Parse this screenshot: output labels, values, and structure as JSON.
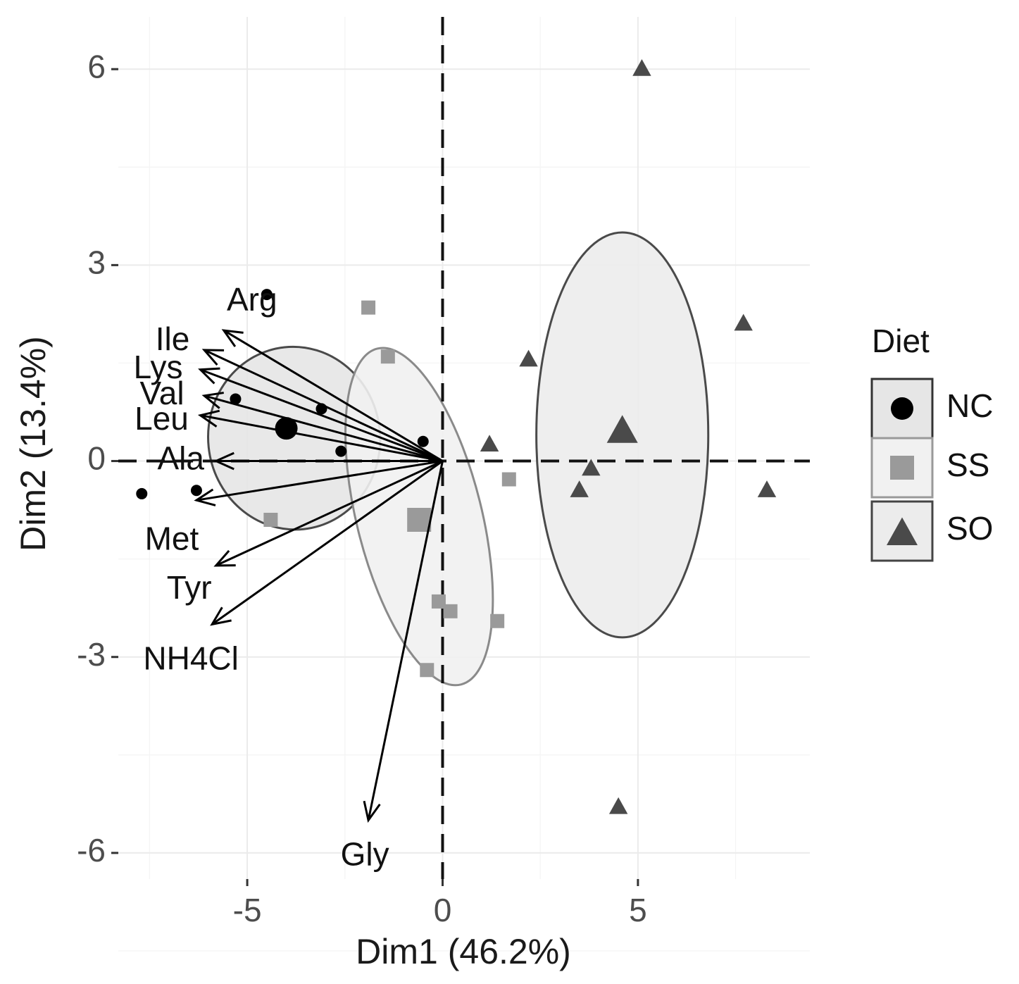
{
  "chart_data": {
    "type": "scatter",
    "xlabel": "Dim1 (46.2%)",
    "ylabel": "Dim2 (13.4%)",
    "xlim": [
      -8.3,
      9.4
    ],
    "ylim": [
      -6.4,
      6.8
    ],
    "x_ticks": [
      -5,
      0,
      5
    ],
    "x_tick_labels": [
      "-5",
      "0",
      "5"
    ],
    "y_ticks": [
      -6,
      -3,
      0,
      3,
      6
    ],
    "y_tick_labels": [
      "-6",
      "-3",
      "0",
      "3",
      "6"
    ],
    "grid": true,
    "legend": {
      "title": "Diet",
      "position": "right",
      "entries": [
        {
          "label": "NC",
          "shape": "circle",
          "color": "#000000"
        },
        {
          "label": "SS",
          "shape": "square",
          "color": "#9a9a9a"
        },
        {
          "label": "SO",
          "shape": "triangle",
          "color": "#4a4a4a"
        }
      ]
    },
    "series": [
      {
        "name": "NC",
        "shape": "circle",
        "color": "#000000",
        "points": [
          [
            -4.5,
            2.55
          ],
          [
            -5.3,
            0.95
          ],
          [
            -3.1,
            0.8
          ],
          [
            -2.6,
            0.15
          ],
          [
            -0.5,
            0.3
          ],
          [
            -6.3,
            -0.45
          ],
          [
            -7.7,
            -0.5
          ]
        ],
        "centroid": [
          -4.0,
          0.5
        ],
        "ellipse": {
          "cx": -3.8,
          "cy": 0.35,
          "rx": 2.2,
          "ry": 1.4,
          "rotation_deg": -6
        }
      },
      {
        "name": "SS",
        "shape": "square",
        "color": "#9a9a9a",
        "points": [
          [
            -1.9,
            2.35
          ],
          [
            -1.4,
            1.6
          ],
          [
            -4.4,
            -0.9
          ],
          [
            1.7,
            -0.28
          ],
          [
            -0.1,
            -2.15
          ],
          [
            0.2,
            -2.3
          ],
          [
            1.4,
            -2.45
          ],
          [
            -0.4,
            -3.2
          ]
        ],
        "centroid": [
          -0.6,
          -0.9
        ],
        "ellipse": {
          "cx": -0.6,
          "cy": -0.85,
          "rx": 1.6,
          "ry": 2.65,
          "rotation_deg": -14
        }
      },
      {
        "name": "SO",
        "shape": "triangle",
        "color": "#4a4a4a",
        "points": [
          [
            5.1,
            6.0
          ],
          [
            7.7,
            2.1
          ],
          [
            2.2,
            1.55
          ],
          [
            1.2,
            0.25
          ],
          [
            3.8,
            -0.12
          ],
          [
            3.5,
            -0.45
          ],
          [
            8.3,
            -0.45
          ],
          [
            4.5,
            -5.3
          ]
        ],
        "centroid": [
          4.6,
          0.45
        ],
        "ellipse": {
          "cx": 4.6,
          "cy": 0.4,
          "rx": 2.2,
          "ry": 3.1,
          "rotation_deg": 0
        }
      }
    ],
    "variables": [
      {
        "name": "Arg",
        "x": -5.6,
        "y": 2.0
      },
      {
        "name": "Ile",
        "x": -6.1,
        "y": 1.7
      },
      {
        "name": "Lys",
        "x": -6.2,
        "y": 1.4
      },
      {
        "name": "Val",
        "x": -6.1,
        "y": 1.0
      },
      {
        "name": "Leu",
        "x": -6.2,
        "y": 0.7
      },
      {
        "name": "Ala",
        "x": -5.8,
        "y": 0.0
      },
      {
        "name": "Met",
        "x": -6.3,
        "y": -0.6
      },
      {
        "name": "Tyr",
        "x": -5.8,
        "y": -1.6
      },
      {
        "name": "NH4Cl",
        "x": -5.9,
        "y": -2.5
      },
      {
        "name": "Gly",
        "x": -1.9,
        "y": -5.5
      }
    ]
  }
}
